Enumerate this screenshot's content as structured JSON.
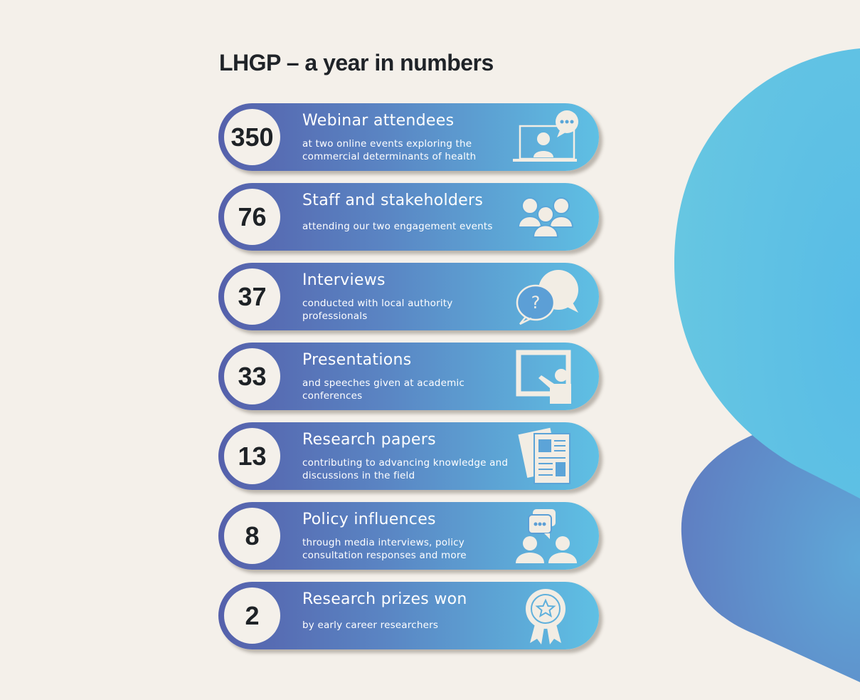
{
  "title": "LHGP – a year in numbers",
  "colors": {
    "background": "#f4f0ea",
    "gradient_start": "#5560ab",
    "gradient_end": "#5fc0e4",
    "icon": "#f2ede4",
    "number_text": "#1e2226"
  },
  "stats": [
    {
      "number": "350",
      "title": "Webinar attendees",
      "description": "at two online events exploring the commercial determinants of health",
      "icon": "laptop-video-call-icon"
    },
    {
      "number": "76",
      "title": "Staff and stakeholders",
      "description": "attending our two engagement events",
      "icon": "group-people-icon"
    },
    {
      "number": "37",
      "title": "Interviews",
      "description": "conducted with local authority professionals",
      "icon": "question-speech-bubbles-icon"
    },
    {
      "number": "33",
      "title": "Presentations",
      "description": "and speeches given at academic conferences",
      "icon": "presenter-board-icon"
    },
    {
      "number": "13",
      "title": "Research papers",
      "description": "contributing to advancing knowledge and discussions in the field",
      "icon": "newspaper-icon"
    },
    {
      "number": "8",
      "title": "Policy influences",
      "description": "through media interviews, policy consultation responses and more",
      "icon": "people-discussion-icon"
    },
    {
      "number": "2",
      "title": "Research prizes won",
      "description": "by early career researchers",
      "icon": "award-rosette-icon"
    }
  ]
}
